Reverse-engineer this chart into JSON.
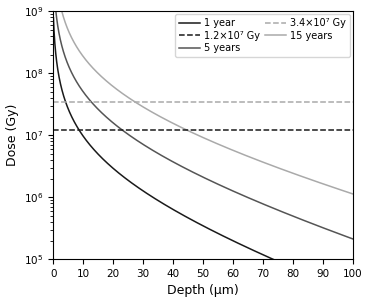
{
  "xlabel": "Depth (μm)",
  "ylabel": "Dose (Gy)",
  "xlim": [
    0,
    100
  ],
  "ylim": [
    100000.0,
    1000000000.0
  ],
  "curve_params": [
    {
      "label": "1 year",
      "color": "#1a1a1a",
      "A": 280000000.0,
      "k": 0.032,
      "n": 1.3,
      "b": 0.4
    },
    {
      "label": "5 years",
      "color": "#555555",
      "A": 1400000000.0,
      "k": 0.028,
      "n": 1.3,
      "b": 0.4
    },
    {
      "label": "15 years",
      "color": "#aaaaaa",
      "A": 5000000000.0,
      "k": 0.024,
      "n": 1.3,
      "b": 0.4
    }
  ],
  "hlines": [
    {
      "label": "1.2×10⁷ Gy",
      "y": 12000000.0,
      "color": "#1a1a1a"
    },
    {
      "label": "3.4×10⁷ Gy",
      "y": 34000000.0,
      "color": "#aaaaaa"
    }
  ],
  "legend_fontsize": 7.0,
  "axis_fontsize": 9,
  "tick_fontsize": 7.5
}
